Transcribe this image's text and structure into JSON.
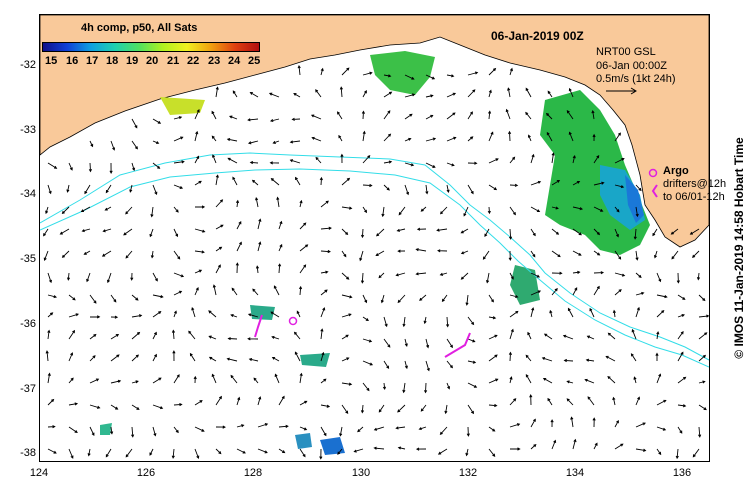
{
  "title": "06-Jan-2019 00Z",
  "colorbar": {
    "title": "4h comp, p50, All Sats",
    "labels": [
      "15",
      "16",
      "17",
      "18",
      "19",
      "20",
      "21",
      "22",
      "23",
      "24",
      "25"
    ]
  },
  "legend": {
    "source": "NRT00 GSL",
    "datetime": "06-Jan 00:00Z",
    "scale": "0.5m/s (1kt 24h)"
  },
  "argo": {
    "label": "Argo",
    "drifters_line1": "drifters@12h",
    "drifters_line2": "to 06/01-12h"
  },
  "side_label": "© IMOS 11-Jan-2019 14:58 Hobart Time",
  "x_ticks": [
    "124",
    "126",
    "128",
    "130",
    "132",
    "134",
    "136"
  ],
  "y_ticks": [
    "-32",
    "-33",
    "-34",
    "-35",
    "-36",
    "-37",
    "-38"
  ],
  "colors": {
    "land": "#f9c99a",
    "contour": "#33dde8",
    "argo": "#e020e0",
    "arrow": "#000000"
  }
}
